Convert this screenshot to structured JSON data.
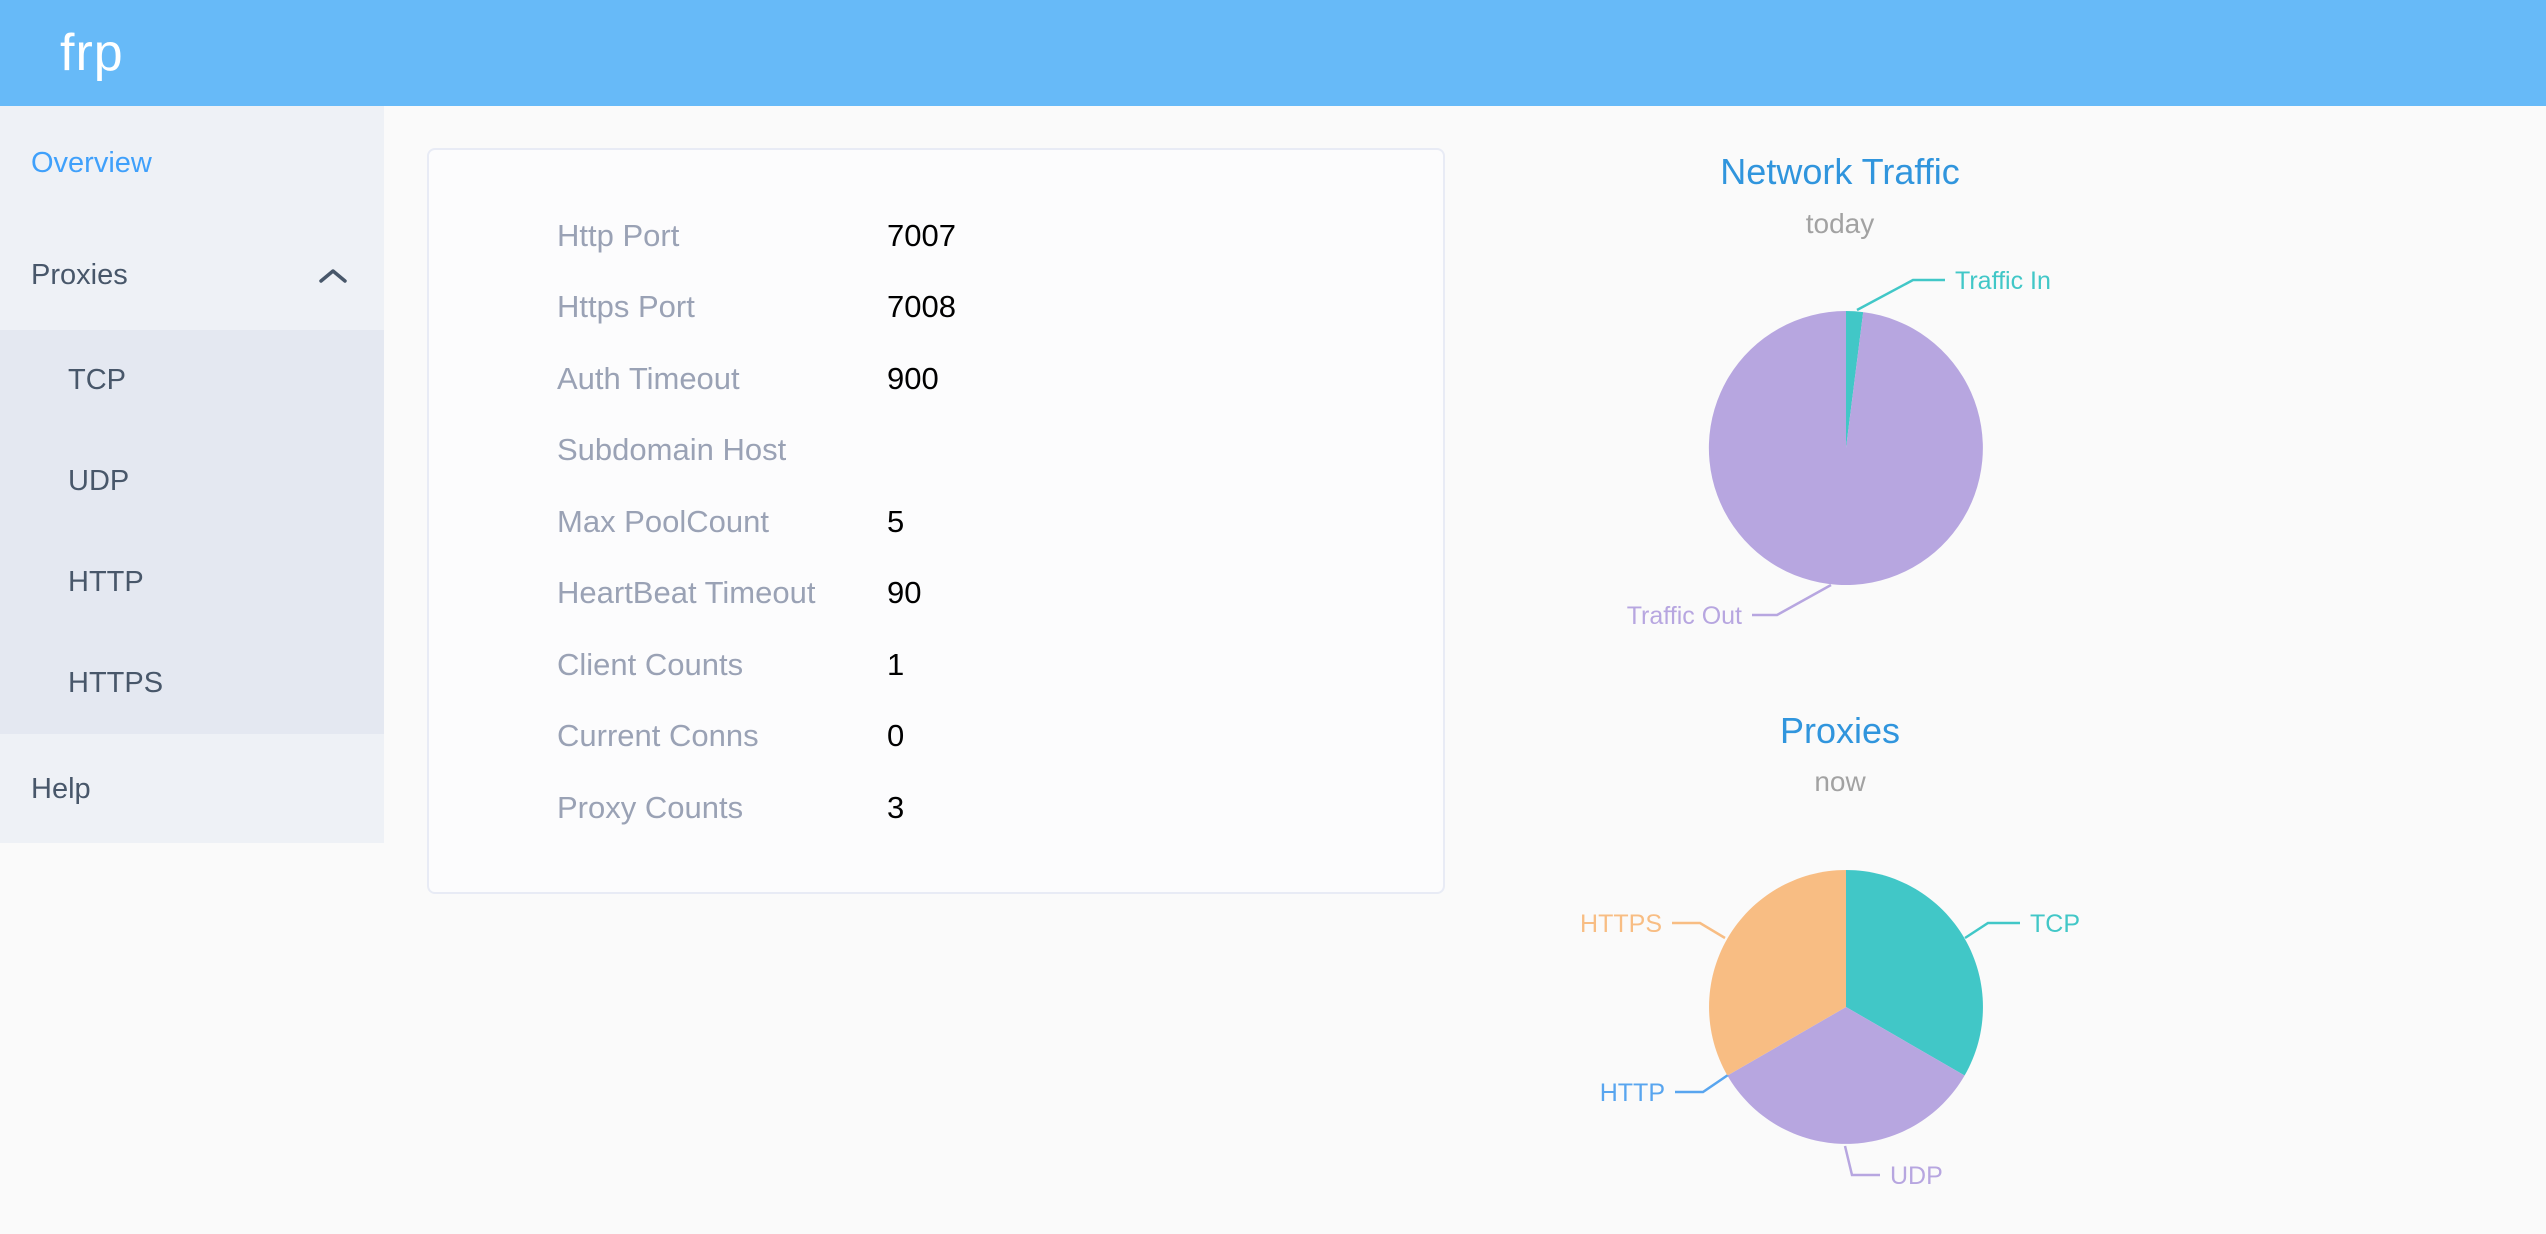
{
  "header": {
    "logo": "frp",
    "background": "#67baf8"
  },
  "sidebar": {
    "items": {
      "overview": "Overview",
      "proxies": "Proxies",
      "help": "Help"
    },
    "submenu": [
      "TCP",
      "UDP",
      "HTTP",
      "HTTPS"
    ],
    "active_item": "Overview",
    "active_color": "#3fa0fb"
  },
  "server_info": {
    "rows": [
      {
        "label": "Http Port",
        "value": "7007"
      },
      {
        "label": "Https Port",
        "value": "7008"
      },
      {
        "label": "Auth Timeout",
        "value": "900"
      },
      {
        "label": "Subdomain Host",
        "value": ""
      },
      {
        "label": "Max PoolCount",
        "value": "5"
      },
      {
        "label": "HeartBeat Timeout",
        "value": "90"
      },
      {
        "label": "Client Counts",
        "value": "1"
      },
      {
        "label": "Current Conns",
        "value": "0"
      },
      {
        "label": "Proxy Counts",
        "value": "3"
      }
    ]
  },
  "chart_data": [
    {
      "type": "pie",
      "title": "Network Traffic",
      "subtitle": "today",
      "legend_position": "callout-labels",
      "series": [
        {
          "name": "Traffic In",
          "value": 2,
          "color": "#41c7c7"
        },
        {
          "name": "Traffic Out",
          "value": 98,
          "color": "#b7a6e0"
        }
      ]
    },
    {
      "type": "pie",
      "title": "Proxies",
      "subtitle": "now",
      "legend_position": "callout-labels",
      "series": [
        {
          "name": "TCP",
          "value": 1,
          "color": "#41c7c7"
        },
        {
          "name": "UDP",
          "value": 1,
          "color": "#b7a6e0"
        },
        {
          "name": "HTTP",
          "value": 0,
          "color": "#58a5ef"
        },
        {
          "name": "HTTPS",
          "value": 1,
          "color": "#f8bd83"
        }
      ]
    }
  ]
}
